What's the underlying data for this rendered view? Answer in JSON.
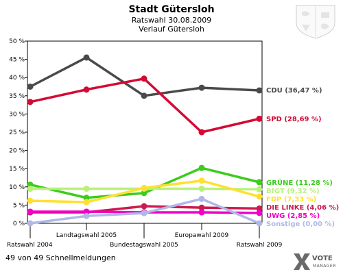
{
  "header": {
    "title": "Stadt Gütersloh",
    "subtitle1": "Ratswahl 30.08.2009",
    "subtitle2": "Verlauf Gütersloh"
  },
  "footer": {
    "status": "49 von 49 Schnellmeldungen",
    "brand_main": "VOTE",
    "brand_sub": "MANAGER"
  },
  "chart_data": {
    "type": "line",
    "title": "Stadt Gütersloh",
    "ylim": [
      0,
      50
    ],
    "yticks": [
      "0 %",
      "5 %",
      "10 %",
      "15 %",
      "20 %",
      "25 %",
      "30 %",
      "35 %",
      "40 %",
      "45 %",
      "50 %"
    ],
    "x": [
      "Ratswahl 2004",
      "Landtagswahl 2005",
      "Bundestagswahl 2005",
      "Europawahl 2009",
      "Ratswahl 2009"
    ],
    "grid": false,
    "series": [
      {
        "name": "CDU",
        "label": "CDU (36,47 %)",
        "color": "#4a4a4a",
        "values": [
          37.5,
          45.5,
          35.0,
          37.2,
          36.47
        ]
      },
      {
        "name": "SPD",
        "label": "SPD (28,69 %)",
        "color": "#d40a35",
        "values": [
          33.3,
          36.7,
          39.7,
          25.0,
          28.69
        ]
      },
      {
        "name": "GRÜNE",
        "label": "GRÜNE (11,28 %)",
        "color": "#3ccc1c",
        "values": [
          10.6,
          7.0,
          8.3,
          15.2,
          11.28
        ]
      },
      {
        "name": "BfGT",
        "label": "BfGT (9,32 %)",
        "color": "#b8f07a",
        "values": [
          9.5,
          9.5,
          9.5,
          9.5,
          9.32
        ]
      },
      {
        "name": "FDP",
        "label": "FDP (7,33 %)",
        "color": "#ffe030",
        "values": [
          6.2,
          5.8,
          9.7,
          11.7,
          7.33
        ]
      },
      {
        "name": "DIE LINKE",
        "label": "DIE LINKE (4,06 %)",
        "color": "#cc1a50",
        "values": [
          3.0,
          3.0,
          4.7,
          4.3,
          4.06
        ]
      },
      {
        "name": "UWG",
        "label": "UWG (2,85 %)",
        "color": "#f000c8",
        "values": [
          3.2,
          3.2,
          3.0,
          3.0,
          2.85
        ]
      },
      {
        "name": "Sonstige",
        "label": "Sonstige (0,00 %)",
        "color": "#b0b8e8",
        "values": [
          0.0,
          2.0,
          2.8,
          6.7,
          0.0
        ]
      }
    ]
  }
}
